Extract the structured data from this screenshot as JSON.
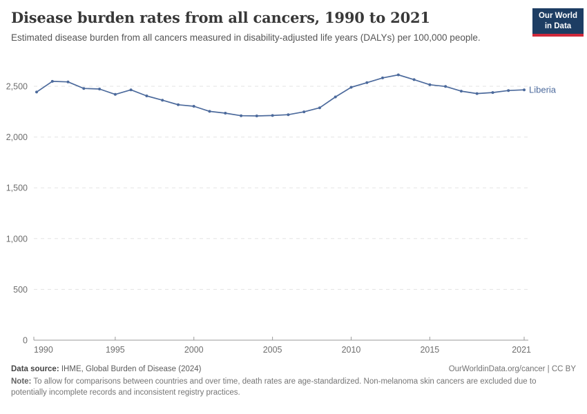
{
  "header": {
    "title": "Disease burden rates from all cancers, 1990 to 2021",
    "subtitle": "Estimated disease burden from all cancers measured in disability-adjusted life years (DALYs) per 100,000 people."
  },
  "logo": {
    "line1": "Our World",
    "line2": "in Data",
    "bg_color": "#1d3d63",
    "bar_color": "#d0293b"
  },
  "chart_data": {
    "type": "line",
    "title": "Disease burden rates from all cancers, 1990 to 2021",
    "xlabel": "",
    "ylabel": "DALYs per 100,000 people",
    "grid": "dashed-horizontal",
    "legend_position": "end-of-line-label",
    "ylim": [
      0,
      2650
    ],
    "x": [
      1990,
      1991,
      1992,
      1993,
      1994,
      1995,
      1996,
      1997,
      1998,
      1999,
      2000,
      2001,
      2002,
      2003,
      2004,
      2005,
      2006,
      2007,
      2008,
      2009,
      2010,
      2011,
      2012,
      2013,
      2014,
      2015,
      2016,
      2017,
      2018,
      2019,
      2020,
      2021
    ],
    "series": [
      {
        "name": "Liberia",
        "color": "#4C6A9C",
        "values": [
          2443,
          2548,
          2543,
          2478,
          2473,
          2420,
          2465,
          2405,
          2363,
          2318,
          2303,
          2253,
          2235,
          2210,
          2208,
          2212,
          2220,
          2248,
          2288,
          2395,
          2490,
          2535,
          2582,
          2612,
          2565,
          2515,
          2498,
          2452,
          2428,
          2438,
          2458,
          2465
        ]
      }
    ],
    "yticks": [
      {
        "value": 0,
        "label": "0"
      },
      {
        "value": 500,
        "label": "500"
      },
      {
        "value": 1000,
        "label": "1,000"
      },
      {
        "value": 1500,
        "label": "1,500"
      },
      {
        "value": 2000,
        "label": "2,000"
      },
      {
        "value": 2500,
        "label": "2,500"
      }
    ],
    "xticks": [
      {
        "value": 1990,
        "label": "1990"
      },
      {
        "value": 1995,
        "label": "1995"
      },
      {
        "value": 2000,
        "label": "2000"
      },
      {
        "value": 2005,
        "label": "2005"
      },
      {
        "value": 2010,
        "label": "2010"
      },
      {
        "value": 2015,
        "label": "2015"
      },
      {
        "value": 2021,
        "label": "2021"
      }
    ]
  },
  "footer": {
    "source_label": "Data source:",
    "source_value": " IHME, Global Burden of Disease (2024)",
    "rights": "OurWorldinData.org/cancer | CC BY",
    "note_label": "Note:",
    "note_value": " To allow for comparisons between countries and over time, death rates are age-standardized. Non-melanoma skin cancers are excluded due to potentially incomplete records and inconsistent registry practices."
  }
}
